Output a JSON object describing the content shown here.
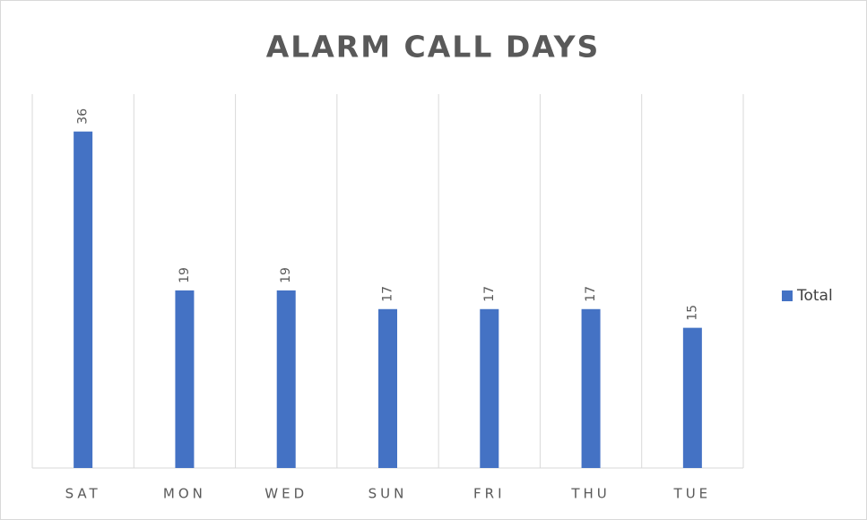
{
  "chart_data": {
    "type": "bar",
    "title": "ALARM CALL DAYS",
    "categories": [
      "SAT",
      "MON",
      "WED",
      "SUN",
      "FRI",
      "THU",
      "TUE"
    ],
    "series": [
      {
        "name": "Total",
        "color": "#4472c4",
        "values": [
          36,
          19,
          19,
          17,
          17,
          17,
          15
        ]
      }
    ],
    "ylim": [
      0,
      40
    ],
    "grid": true,
    "legend": "right"
  }
}
